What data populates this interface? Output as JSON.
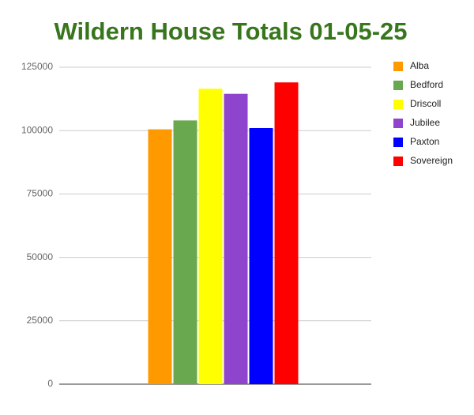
{
  "chart_data": {
    "type": "bar",
    "title": "Wildern House Totals 01-05-25",
    "categories": [
      null
    ],
    "series": [
      {
        "name": "Alba",
        "color": "#ff9900",
        "values": [
          100500
        ]
      },
      {
        "name": "Bedford",
        "color": "#6aa84f",
        "values": [
          104000
        ]
      },
      {
        "name": "Driscoll",
        "color": "#ffff00",
        "values": [
          116500
        ]
      },
      {
        "name": "Jubilee",
        "color": "#8e44cc",
        "values": [
          114500
        ]
      },
      {
        "name": "Paxton",
        "color": "#0000ff",
        "values": [
          101000
        ]
      },
      {
        "name": "Sovereign",
        "color": "#ff0000",
        "values": [
          119000
        ]
      }
    ],
    "ylim": [
      0,
      125000
    ],
    "yticks": [
      0,
      25000,
      50000,
      75000,
      100000,
      125000
    ],
    "grid": true,
    "legend": "right"
  }
}
